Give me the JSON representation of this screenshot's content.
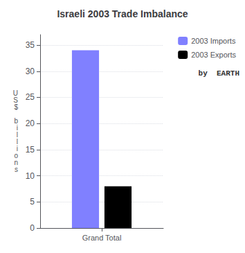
{
  "chart_data": {
    "type": "bar",
    "title": "Israeli 2003 Trade Imbalance",
    "categories": [
      "Grand Total"
    ],
    "series": [
      {
        "name": "2003 Imports",
        "color": "#8080ff",
        "values": [
          34
        ]
      },
      {
        "name": "2003 Exports",
        "color": "#000000",
        "values": [
          8
        ]
      }
    ],
    "ylabel": "U\nS\n$\n\nb\ni\nl\nl\ni\no\nn\ns",
    "ylim": [
      0,
      37
    ],
    "yticks": [
      0,
      5,
      10,
      15,
      20,
      25,
      30,
      35
    ],
    "grid": true,
    "legend": "upper right",
    "annotations": [
      "by  EARTH"
    ]
  }
}
